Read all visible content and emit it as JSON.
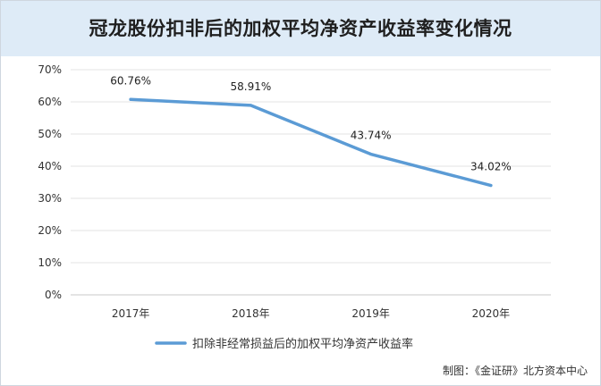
{
  "chart_data": {
    "type": "line",
    "title": "冠龙股份扣非后的加权平均净资产收益率变化情况",
    "categories": [
      "2017年",
      "2018年",
      "2019年",
      "2020年"
    ],
    "series": [
      {
        "name": "扣除非经常损益后的加权平均净资产收益率",
        "values": [
          60.76,
          58.91,
          43.74,
          34.02
        ],
        "labels": [
          "60.76%",
          "58.91%",
          "43.74%",
          "34.02%"
        ],
        "color": "#5b9bd5"
      }
    ],
    "ylim": [
      0,
      70
    ],
    "yticks": [
      "0%",
      "10%",
      "20%",
      "30%",
      "40%",
      "50%",
      "60%",
      "70%"
    ],
    "grid": true,
    "legend": "bottom"
  },
  "source": "制图：《金证研》北方资本中心"
}
